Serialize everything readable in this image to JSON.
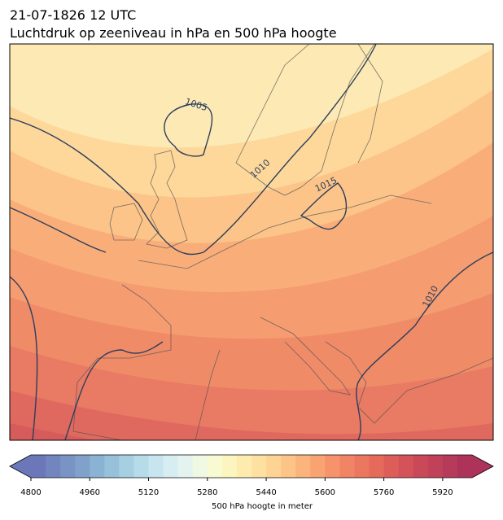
{
  "header": {
    "title": "21-07-1826 12 UTC",
    "subtitle": "Luchtdruk op zeeniveau in hPa en 500 hPa hoogte"
  },
  "map": {
    "contour_labels": [
      "1005",
      "1010",
      "1015",
      "1010"
    ]
  },
  "colorbar": {
    "label": "500 hPa hoogte in meter",
    "lim": [
      4800,
      6000
    ],
    "ticks": [
      4800,
      4960,
      5120,
      5280,
      5440,
      5600,
      5760,
      5920
    ],
    "colors": [
      "#6c77b9",
      "#7285be",
      "#7893c4",
      "#80a2ca",
      "#8ab2d2",
      "#97c1da",
      "#a6cfe2",
      "#b6dbe9",
      "#c6e5ef",
      "#d6eef1",
      "#e4f3ef",
      "#eff8e2",
      "#f8fad2",
      "#fdf5bf",
      "#feecaf",
      "#fee1a0",
      "#fdd494",
      "#fcc587",
      "#fbb47c",
      "#f9a372",
      "#f6936b",
      "#f18465",
      "#eb775f",
      "#e56a5b",
      "#dd5e59",
      "#d45358",
      "#ca4958",
      "#c04158",
      "#b63a59",
      "#ad335a"
    ]
  }
}
